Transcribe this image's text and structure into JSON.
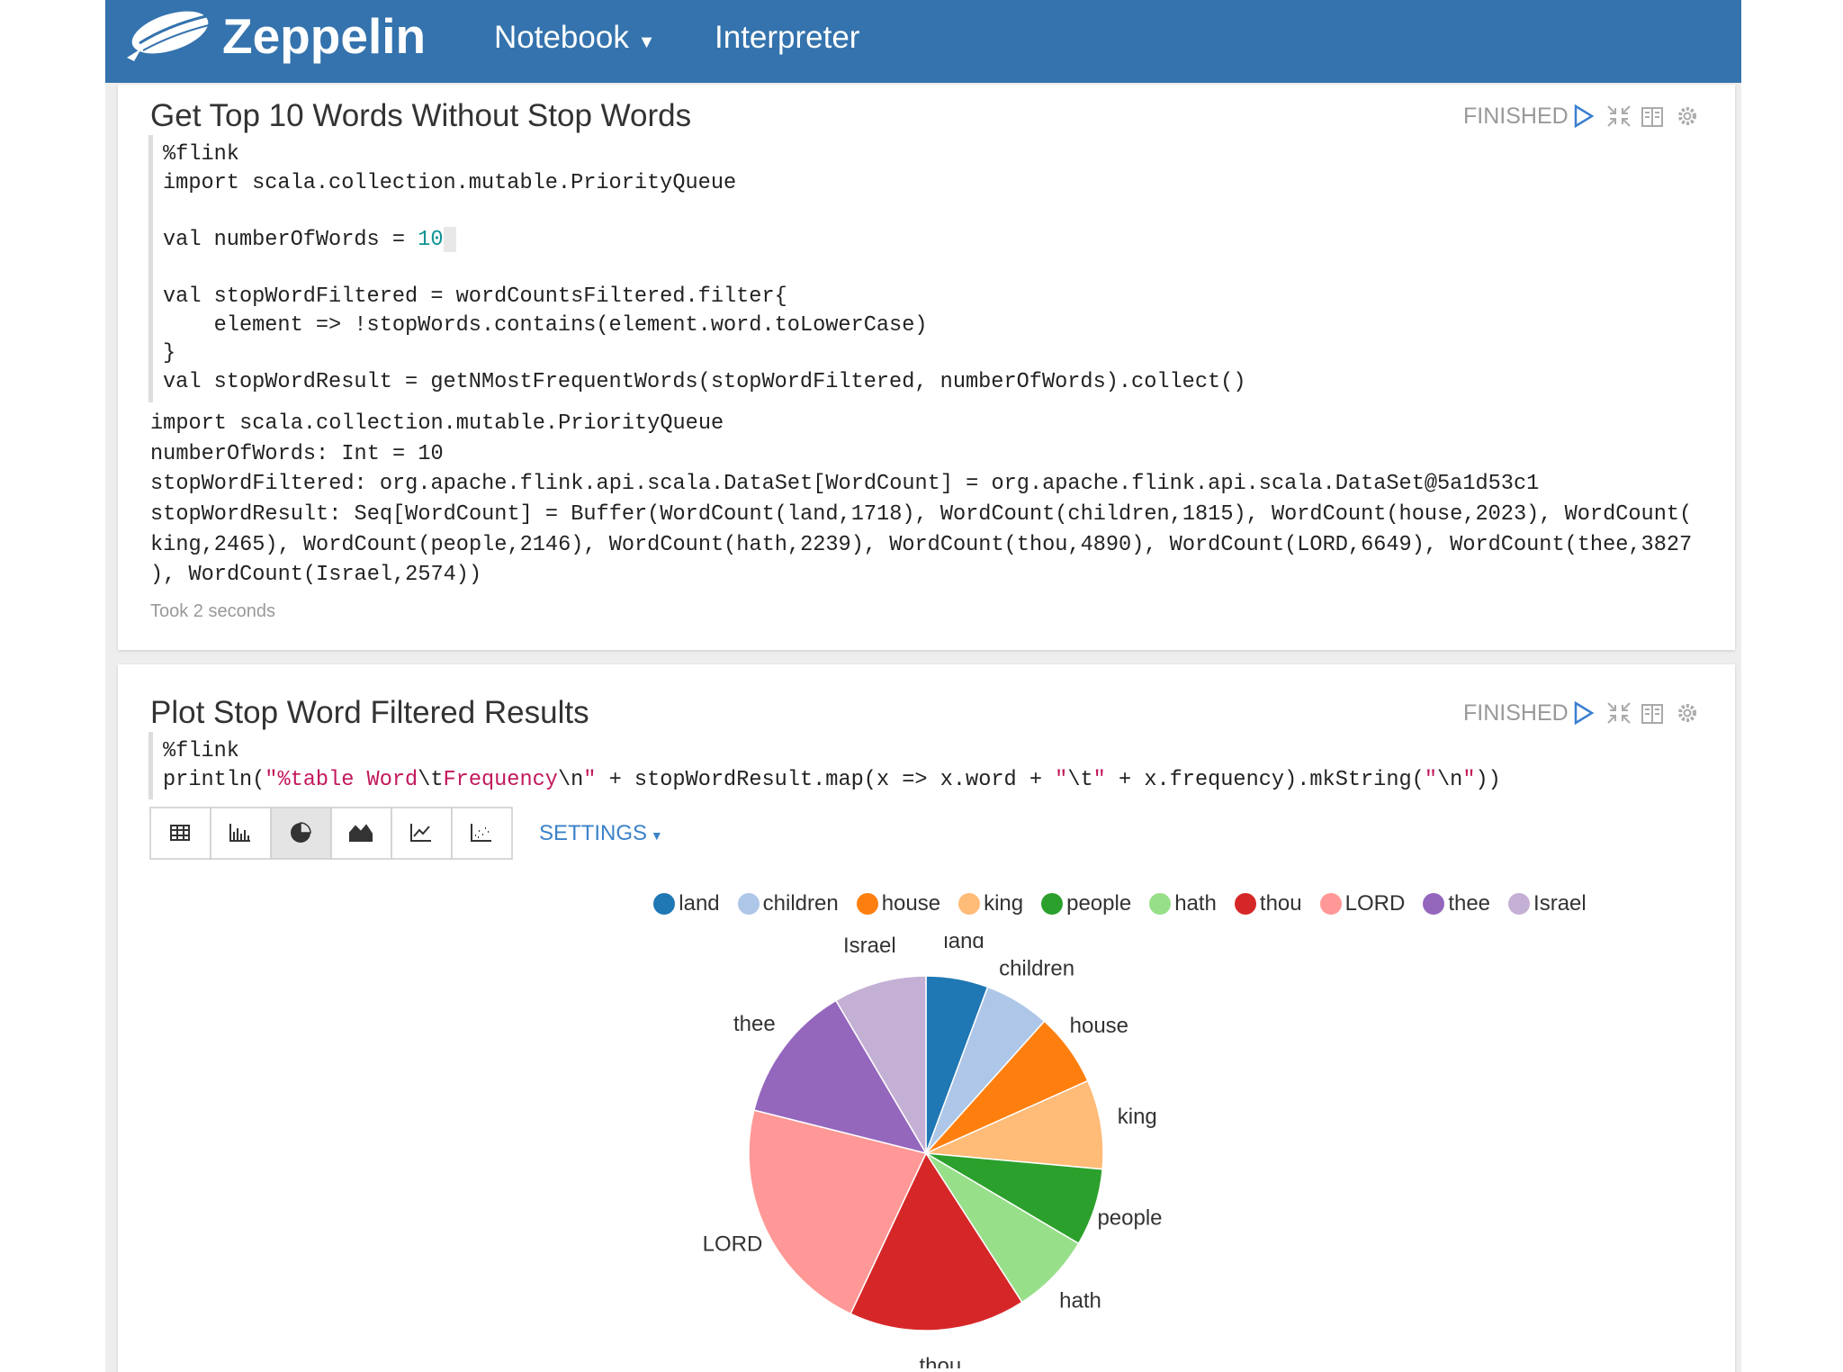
{
  "navbar": {
    "brand": "Zeppelin",
    "menu": [
      "Notebook",
      "Interpreter"
    ]
  },
  "paragraphs": [
    {
      "title": "Get Top 10 Words Without Stop Words",
      "status": "FINISHED",
      "code": [
        [
          "%flink"
        ],
        [
          "import scala.collection.mutable.PriorityQueue"
        ],
        [],
        [
          "val numberOfWords = ",
          {
            "text": "10",
            "color": "#0e9494"
          }
        ],
        [],
        [
          "val stopWordFiltered = wordCountsFiltered.filter{"
        ],
        [
          "    element => !stopWords.contains(element.word.toLowerCase)"
        ],
        [
          "}"
        ],
        [
          "val stopWordResult = getNMostFrequentWords(stopWordFiltered, numberOfWords).collect()"
        ]
      ],
      "output": [
        "import scala.collection.mutable.PriorityQueue",
        "numberOfWords: Int = 10",
        "stopWordFiltered: org.apache.flink.api.scala.DataSet[WordCount] = org.apache.flink.api.scala.DataSet@5a1d53c1",
        "stopWordResult: Seq[WordCount] = Buffer(WordCount(land,1718), WordCount(children,1815), WordCount(house,2023), WordCount(",
        "king,2465), WordCount(people,2146), WordCount(hath,2239), WordCount(thou,4890), WordCount(LORD,6649), WordCount(thee,3827",
        "), WordCount(Israel,2574))"
      ],
      "footer": "Took 2 seconds"
    },
    {
      "title": "Plot Stop Word Filtered Results",
      "status": "FINISHED",
      "code": [
        [
          "%flink"
        ],
        [
          "println(",
          {
            "text": "\"%table Word",
            "color": "#c2185b"
          },
          "\\t",
          {
            "text": "Frequency",
            "color": "#c2185b"
          },
          "\\n",
          {
            "text": "\"",
            "color": "#c2185b"
          },
          " + stopWordResult.map(x => x.word + ",
          {
            "text": "\"",
            "color": "#c2185b"
          },
          "\\t",
          {
            "text": "\"",
            "color": "#c2185b"
          },
          " + x.frequency).mkString(",
          {
            "text": "\"",
            "color": "#c2185b"
          },
          "\\n",
          {
            "text": "\"",
            "color": "#c2185b"
          },
          "))"
        ]
      ],
      "settings": "SETTINGS"
    }
  ],
  "chart_data": {
    "type": "pie",
    "categories": [
      "land",
      "children",
      "house",
      "king",
      "people",
      "hath",
      "thou",
      "LORD",
      "thee",
      "Israel"
    ],
    "values": [
      1718,
      1815,
      2023,
      2465,
      2146,
      2239,
      4890,
      6649,
      3827,
      2574
    ],
    "colors": [
      "#1f77b4",
      "#aec7e8",
      "#ff7f0e",
      "#ffbb78",
      "#2ca02c",
      "#98df8a",
      "#d62728",
      "#ff9896",
      "#9467bd",
      "#c5b0d5"
    ],
    "legend": "top"
  }
}
